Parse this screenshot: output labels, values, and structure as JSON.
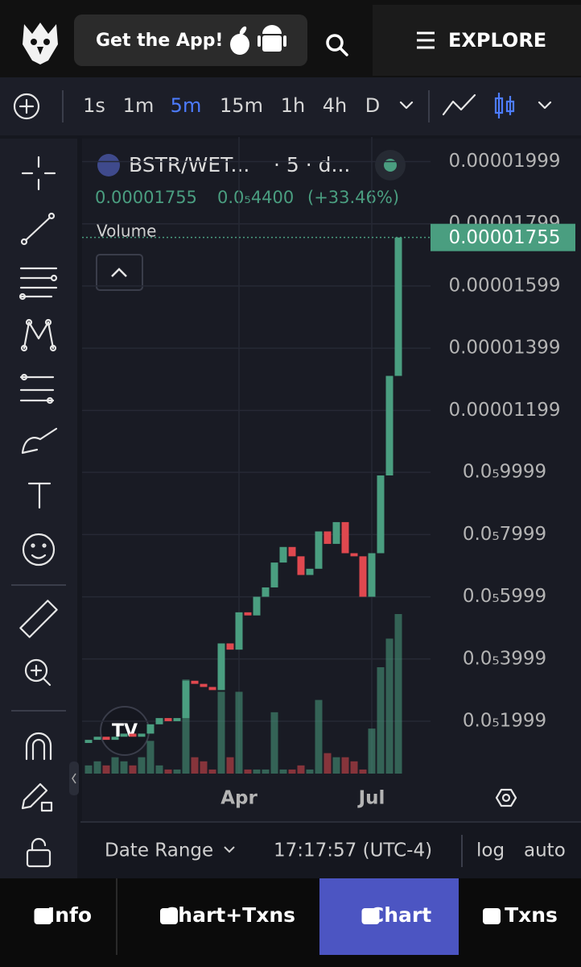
{
  "header": {
    "get_app": "Get the App!",
    "explore": "EXPLORE"
  },
  "toolbar": {
    "intervals": [
      "1s",
      "1m",
      "5m",
      "15m",
      "1h",
      "4h",
      "D"
    ],
    "active_interval": 2
  },
  "chart_data": {
    "type": "candlestick",
    "symbol": "BSTR/WET...",
    "interval_label": "· 5 · d...",
    "last_price": 1.755e-05,
    "change": "0.0₅4400",
    "change_pct": "(+33.46%)",
    "volume_label": "Volume",
    "up_color": "#4a9e80",
    "down_color": "#e0484f",
    "grid": true,
    "ylim": [
      3.15e-07,
      2.078e-05
    ],
    "yticks": [
      {
        "value": 1.999e-05,
        "label": "0.00001999"
      },
      {
        "value": 1.799e-05,
        "label": "0.00001799"
      },
      {
        "value": 1.599e-05,
        "label": "0.00001599"
      },
      {
        "value": 1.399e-05,
        "label": "0.00001399"
      },
      {
        "value": 1.199e-05,
        "label": "0.00001199"
      },
      {
        "value": 9.999e-06,
        "label": "0.0₅9999"
      },
      {
        "value": 7.999e-06,
        "label": "0.0₅7999"
      },
      {
        "value": 5.999e-06,
        "label": "0.0₅5999"
      },
      {
        "value": 3.999e-06,
        "label": "0.0₅3999"
      },
      {
        "value": 1.999e-06,
        "label": "0.0₅1999"
      }
    ],
    "categories": [
      null,
      null,
      null,
      null,
      null,
      null,
      null,
      null,
      null,
      null,
      null,
      null,
      null,
      null,
      null,
      null,
      null,
      "Apr",
      null,
      null,
      null,
      null,
      null,
      null,
      null,
      null,
      null,
      null,
      null,
      null,
      null,
      null,
      "Jul",
      null,
      null,
      null
    ],
    "open": [
      1.3e-06,
      1.4e-06,
      1.5e-06,
      1.4e-06,
      1.5e-06,
      1.6e-06,
      1.5e-06,
      1.6e-06,
      1.9e-06,
      2.1e-06,
      2e-06,
      2.1e-06,
      3.3e-06,
      3.2e-06,
      3.1e-06,
      3e-06,
      4.5e-06,
      4.3e-06,
      5.5e-06,
      5.4e-06,
      6e-06,
      6.3e-06,
      7.1e-06,
      7.6e-06,
      7.3e-06,
      6.7e-06,
      6.9e-06,
      8.1e-06,
      7.7e-06,
      8.4e-06,
      7.4e-06,
      7.3e-06,
      6e-06,
      7.4e-06,
      9.9e-06,
      1.31e-05
    ],
    "close": [
      1.4e-06,
      1.5e-06,
      1.4e-06,
      1.5e-06,
      1.6e-06,
      1.5e-06,
      1.6e-06,
      1.9e-06,
      2.1e-06,
      2e-06,
      2.1e-06,
      3.3e-06,
      3.2e-06,
      3.1e-06,
      3e-06,
      4.5e-06,
      4.3e-06,
      5.5e-06,
      5.4e-06,
      6e-06,
      6.3e-06,
      7.1e-06,
      7.6e-06,
      7.3e-06,
      6.7e-06,
      6.9e-06,
      8.1e-06,
      7.7e-06,
      8.4e-06,
      7.4e-06,
      7.3e-06,
      6e-06,
      7.4e-06,
      9.9e-06,
      1.31e-05,
      1.755e-05
    ],
    "volume": [
      10,
      15,
      10,
      20,
      15,
      10,
      20,
      40,
      10,
      5,
      5,
      115,
      20,
      15,
      5,
      100,
      20,
      100,
      5,
      5,
      5,
      75,
      5,
      5,
      10,
      5,
      90,
      25,
      20,
      20,
      15,
      5,
      55,
      130,
      165,
      195
    ]
  },
  "footer": {
    "date_range": "Date Range",
    "time": "17:17:57 (UTC-4)",
    "log": "log",
    "auto": "auto"
  },
  "tabs": [
    "Info",
    "Chart+Txns",
    "Chart",
    "Txns"
  ],
  "active_tab": 2
}
